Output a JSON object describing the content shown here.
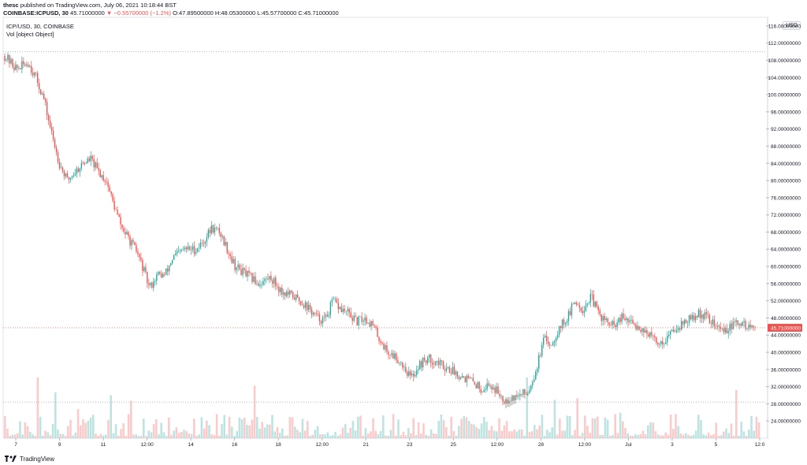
{
  "header": {
    "publisher": "thesc",
    "published_text": "published on TradingView.com, July 06, 2021 10:18:44 BST",
    "symbol_line": "COINBASE:ICPUSD, 30",
    "last": "45.71000000",
    "change": "▼ −0.55700000 (−1.2%)",
    "ohlc": "O:47.89500000 H:48.05300000 L:45.57700000 C:45.71000000"
  },
  "legend": {
    "title": "ICP/USD, 30, COINBASE",
    "volume_label": "Vol [object Object]"
  },
  "currency_button": "USD",
  "footer": {
    "brand": "TradingView"
  },
  "colors": {
    "up": "#26a69a",
    "down": "#ef5350",
    "price_label_bg": "#ef5350"
  },
  "chart_data": {
    "type": "candlestick",
    "title": "ICP/USD, 30, COINBASE",
    "ylim": [
      20,
      118
    ],
    "y_ticks": [
      "116.00000000",
      "112.00000000",
      "108.00000000",
      "104.00000000",
      "100.00000000",
      "96.00000000",
      "92.00000000",
      "88.00000000",
      "84.00000000",
      "80.00000000",
      "76.00000000",
      "72.00000000",
      "68.00000000",
      "64.00000000",
      "60.00000000",
      "56.00000000",
      "52.00000000",
      "48.00000000",
      "44.00000000",
      "40.00000000",
      "36.00000000",
      "32.00000000",
      "28.00000000",
      "24.00000000"
    ],
    "x_ticks": [
      "7",
      "9",
      "11",
      "12:00",
      "14",
      "16",
      "18",
      "12:00",
      "21",
      "23",
      "25",
      "12:00",
      "28",
      "12:00",
      "Jul",
      "3",
      "5",
      "12:0"
    ],
    "last_price": 45.71,
    "last_price_label": "45.71000000",
    "ref_high": 110,
    "ref_low": 28.4,
    "price_path": [
      [
        0,
        109
      ],
      [
        1.5,
        106
      ],
      [
        3,
        107.5
      ],
      [
        4,
        104
      ],
      [
        5,
        99
      ],
      [
        6,
        91
      ],
      [
        7,
        84
      ],
      [
        8,
        80
      ],
      [
        9,
        82
      ],
      [
        10,
        84
      ],
      [
        11,
        85
      ],
      [
        12,
        82
      ],
      [
        13,
        80
      ],
      [
        14,
        74
      ],
      [
        15,
        69
      ],
      [
        16,
        66
      ],
      [
        17,
        63
      ],
      [
        17.8,
        59
      ],
      [
        18.5,
        55
      ],
      [
        19.5,
        58
      ],
      [
        20.5,
        58
      ],
      [
        21.5,
        62
      ],
      [
        23,
        64
      ],
      [
        24.5,
        64
      ],
      [
        25.5,
        66
      ],
      [
        26.5,
        69
      ],
      [
        27.5,
        68
      ],
      [
        28.5,
        64
      ],
      [
        29.5,
        60
      ],
      [
        31,
        58
      ],
      [
        32.5,
        56
      ],
      [
        34,
        57.5
      ],
      [
        35.5,
        54
      ],
      [
        37,
        53
      ],
      [
        38.5,
        51
      ],
      [
        40,
        48
      ],
      [
        41,
        47.5
      ],
      [
        42,
        52
      ],
      [
        43,
        50
      ],
      [
        44,
        49
      ],
      [
        45,
        47
      ],
      [
        46,
        48
      ],
      [
        47,
        46.5
      ],
      [
        48,
        43
      ],
      [
        49,
        40
      ],
      [
        50,
        39
      ],
      [
        51,
        37
      ],
      [
        52,
        34
      ],
      [
        53,
        37
      ],
      [
        54,
        38.5
      ],
      [
        55,
        38
      ],
      [
        56,
        37
      ],
      [
        57,
        36
      ],
      [
        58,
        35
      ],
      [
        59,
        34
      ],
      [
        60,
        33
      ],
      [
        61,
        31.5
      ],
      [
        62,
        32.5
      ],
      [
        63,
        31
      ],
      [
        64,
        29
      ],
      [
        65,
        29.5
      ],
      [
        66,
        30
      ],
      [
        67,
        31
      ],
      [
        68,
        36
      ],
      [
        69,
        43
      ],
      [
        70,
        42
      ],
      [
        71,
        46
      ],
      [
        72,
        48
      ],
      [
        73,
        52
      ],
      [
        74,
        50
      ],
      [
        75,
        53
      ],
      [
        76,
        49
      ],
      [
        77,
        47
      ],
      [
        78,
        46
      ],
      [
        79,
        48
      ],
      [
        80,
        47
      ],
      [
        81,
        46
      ],
      [
        82,
        45
      ],
      [
        83,
        43
      ],
      [
        84,
        42
      ],
      [
        85,
        44
      ],
      [
        86,
        46
      ],
      [
        87,
        47
      ],
      [
        88,
        48
      ],
      [
        89,
        49
      ],
      [
        90,
        48
      ],
      [
        91,
        46
      ],
      [
        92,
        45
      ],
      [
        93,
        46
      ],
      [
        94,
        47
      ],
      [
        95,
        46
      ],
      [
        96,
        45.7
      ]
    ],
    "volume_bars": 300
  }
}
